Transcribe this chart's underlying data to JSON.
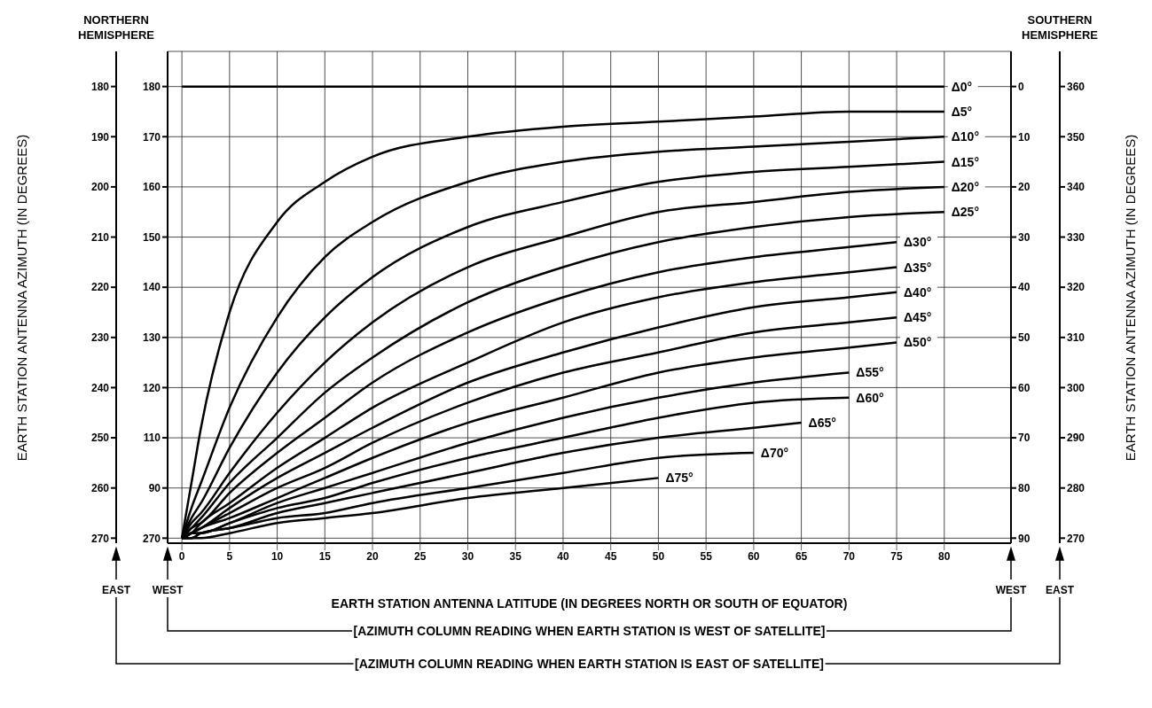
{
  "chart_data": {
    "type": "line",
    "xlabel": "EARTH STATION ANTENNA LATITUDE (IN DEGREES NORTH OR SOUTH OF EQUATOR)",
    "ylabel": "EARTH STATION ANTENNA AZIMUTH (IN DEGREES)",
    "y2label": "EARTH STATION ANTENNA AZIMUTH (IN DEGREES)",
    "xlim": [
      -1.5,
      87
    ],
    "xticks": [
      0,
      5,
      10,
      15,
      20,
      25,
      30,
      35,
      40,
      45,
      50,
      55,
      60,
      65,
      70,
      75,
      80
    ],
    "ylim": [
      271,
      173
    ],
    "yticks": [
      180,
      190,
      200,
      210,
      220,
      230,
      240,
      250,
      260,
      270
    ],
    "y2lim": [
      269,
      367
    ],
    "y2ticks": [
      360,
      350,
      340,
      330,
      320,
      310,
      300,
      290,
      280,
      270
    ],
    "y3lim": [
      91,
      -7
    ],
    "y3ticks": [
      0,
      10,
      20,
      30,
      40,
      50,
      60,
      70,
      80,
      90
    ],
    "grid": true,
    "marker": "none",
    "line_style": "solid",
    "annotations": [
      "NORTHERN HEMISPHERE",
      "SOUTHERN HEMISPHERE",
      "EAST",
      "WEST",
      "WEST",
      "EAST",
      "[AZIMUTH COLUMN READING WHEN EARTH STATION IS WEST OF SATELLITE]",
      "[AZIMUTH COLUMN READING WHEN EARTH STATION IS EAST OF SATELLITE]",
      "180",
      "170",
      "160",
      "150",
      "140",
      "130",
      "120",
      "110",
      "90",
      "270"
    ],
    "series": [
      {
        "name": "Δ0°",
        "color": "#000000",
        "x": [
          0,
          80
        ],
        "values": [
          180,
          180
        ]
      },
      {
        "name": "Δ5°",
        "color": "#000000",
        "x": [
          0,
          1,
          2,
          5,
          10,
          15,
          20,
          30,
          40,
          50,
          60,
          70,
          80
        ],
        "values": [
          270,
          259,
          248,
          225,
          207,
          199,
          194,
          190,
          188,
          187,
          186,
          185,
          185
        ]
      },
      {
        "name": "Δ10°",
        "color": "#000000",
        "x": [
          0,
          1,
          2,
          5,
          10,
          15,
          20,
          30,
          40,
          50,
          60,
          70,
          80
        ],
        "values": [
          270,
          264,
          259,
          244,
          226,
          214,
          207,
          199,
          195,
          193,
          192,
          191,
          190
        ]
      },
      {
        "name": "Δ15°",
        "color": "#000000",
        "x": [
          0,
          1,
          2,
          5,
          10,
          15,
          20,
          30,
          40,
          50,
          60,
          70,
          80
        ],
        "values": [
          270,
          266,
          263,
          252,
          237,
          226,
          218,
          208,
          203,
          199,
          197,
          196,
          195
        ]
      },
      {
        "name": "Δ20°",
        "color": "#000000",
        "x": [
          0,
          1,
          2,
          5,
          10,
          15,
          20,
          30,
          40,
          50,
          60,
          70,
          80
        ],
        "values": [
          270,
          267,
          265,
          257,
          245,
          235,
          227,
          216,
          210,
          205,
          203,
          201,
          200
        ]
      },
      {
        "name": "Δ25°",
        "color": "#000000",
        "x": [
          0,
          1,
          2,
          5,
          10,
          15,
          20,
          30,
          40,
          50,
          60,
          70,
          80
        ],
        "values": [
          270,
          268,
          266,
          259,
          250,
          241,
          234,
          223,
          216,
          211,
          208,
          206,
          205
        ]
      },
      {
        "name": "Δ30°",
        "color": "#000000",
        "x": [
          0,
          1,
          2,
          5,
          10,
          15,
          20,
          30,
          40,
          50,
          60,
          70,
          75
        ],
        "values": [
          270,
          268,
          267,
          261,
          253,
          246,
          239,
          229,
          222,
          217,
          214,
          212,
          211
        ]
      },
      {
        "name": "Δ35°",
        "color": "#000000",
        "x": [
          0,
          1,
          2,
          5,
          10,
          15,
          20,
          30,
          40,
          50,
          60,
          70,
          75
        ],
        "values": [
          270,
          269,
          267,
          263,
          256,
          250,
          244,
          235,
          227,
          222,
          219,
          217,
          216
        ]
      },
      {
        "name": "Δ40°",
        "color": "#000000",
        "x": [
          0,
          1,
          2,
          5,
          10,
          15,
          20,
          30,
          40,
          50,
          60,
          70,
          75
        ],
        "values": [
          270,
          269,
          268,
          264,
          258,
          253,
          248,
          239,
          233,
          228,
          224,
          222,
          221
        ]
      },
      {
        "name": "Δ45°",
        "color": "#000000",
        "x": [
          0,
          1,
          2,
          5,
          10,
          15,
          20,
          30,
          40,
          50,
          60,
          70,
          75
        ],
        "values": [
          270,
          269,
          268,
          265,
          260,
          256,
          251,
          243,
          237,
          233,
          229,
          227,
          226
        ]
      },
      {
        "name": "Δ50°",
        "color": "#000000",
        "x": [
          0,
          1,
          2,
          5,
          10,
          15,
          20,
          30,
          40,
          50,
          60,
          70,
          75
        ],
        "values": [
          270,
          269,
          268,
          266,
          262,
          258,
          254,
          247,
          242,
          237,
          234,
          232,
          231
        ]
      },
      {
        "name": "Δ55°",
        "color": "#000000",
        "x": [
          0,
          1,
          2,
          5,
          10,
          15,
          20,
          30,
          40,
          50,
          60,
          70
        ],
        "values": [
          270,
          269,
          269,
          267,
          263,
          260,
          257,
          251,
          246,
          242,
          239,
          237
        ]
      },
      {
        "name": "Δ60°",
        "color": "#000000",
        "x": [
          0,
          1,
          2,
          5,
          10,
          15,
          20,
          30,
          40,
          50,
          60,
          70
        ],
        "values": [
          270,
          269,
          269,
          267,
          264,
          262,
          259,
          254,
          250,
          246,
          243,
          242
        ]
      },
      {
        "name": "Δ65°",
        "color": "#000000",
        "x": [
          0,
          1,
          2,
          5,
          10,
          15,
          20,
          30,
          40,
          50,
          60,
          65
        ],
        "values": [
          270,
          270,
          269,
          268,
          265,
          263,
          261,
          257,
          253,
          250,
          248,
          247
        ]
      },
      {
        "name": "Δ70°",
        "color": "#000000",
        "x": [
          0,
          1,
          2,
          5,
          10,
          15,
          20,
          30,
          40,
          50,
          60
        ],
        "values": [
          270,
          270,
          269,
          268,
          266,
          265,
          263,
          260,
          257,
          254,
          253
        ]
      },
      {
        "name": "Δ75°",
        "color": "#000000",
        "x": [
          0,
          1,
          2,
          5,
          10,
          15,
          20,
          30,
          40,
          50
        ],
        "values": [
          270,
          270,
          270,
          269,
          267,
          266,
          265,
          262,
          260,
          258
        ]
      }
    ]
  }
}
